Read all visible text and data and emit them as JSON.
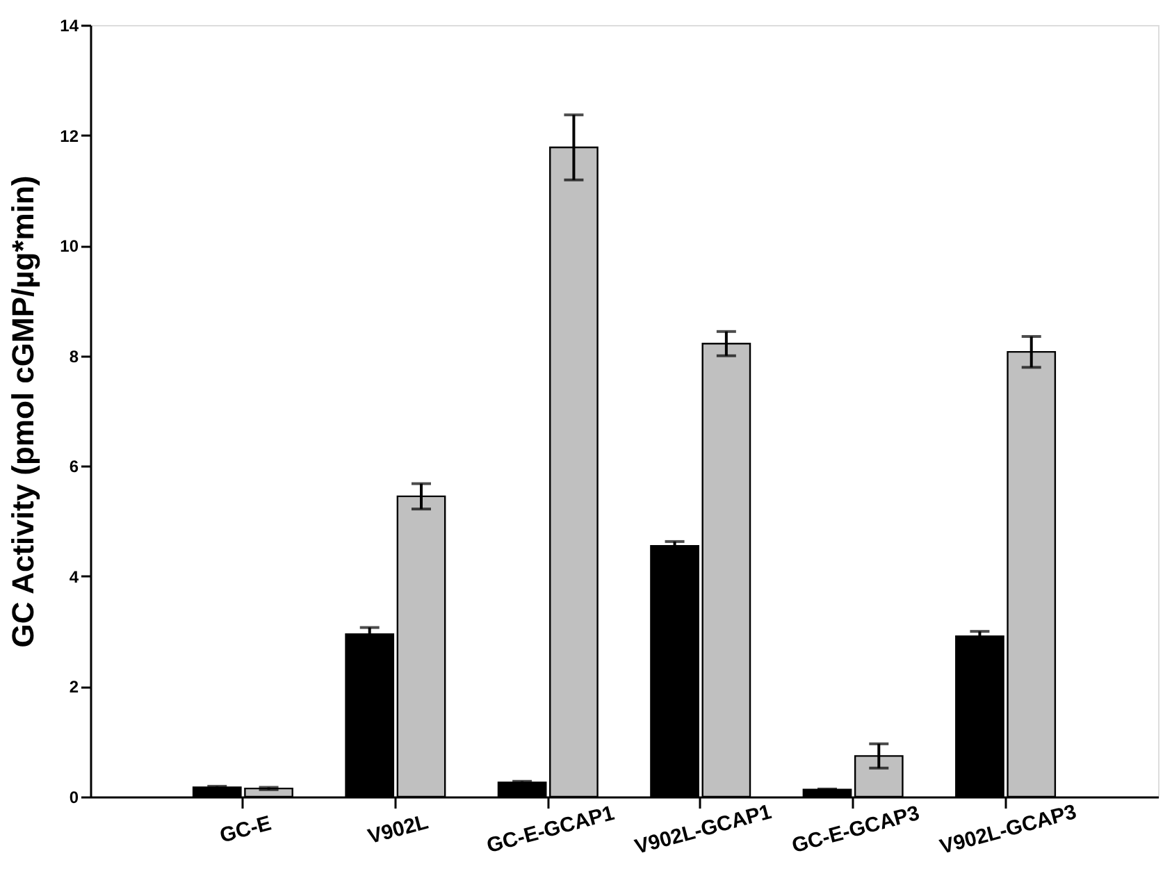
{
  "chart_data": {
    "type": "bar",
    "ylabel": "GC Activity (pmol cGMP/µg*min)",
    "categories": [
      "GC-E",
      "V902L",
      "GC-E-GCAP1",
      "V902L-GCAP1",
      "GC-E-GCAP3",
      "V902L-GCAP3"
    ],
    "series": [
      {
        "color": "#000000",
        "values": [
          0.17,
          2.95,
          0.26,
          4.55,
          0.13,
          2.91
        ],
        "errors": [
          0.02,
          0.12,
          0.02,
          0.08,
          0.01,
          0.09
        ]
      },
      {
        "color": "#c0c0c0",
        "values": [
          0.15,
          5.45,
          11.78,
          8.22,
          0.74,
          8.07
        ],
        "errors": [
          0.02,
          0.23,
          0.59,
          0.22,
          0.22,
          0.28
        ]
      }
    ],
    "ylim": [
      0,
      14
    ],
    "yticks": [
      0,
      2,
      4,
      6,
      8,
      10,
      12,
      14
    ],
    "grid": false,
    "legend": false
  }
}
